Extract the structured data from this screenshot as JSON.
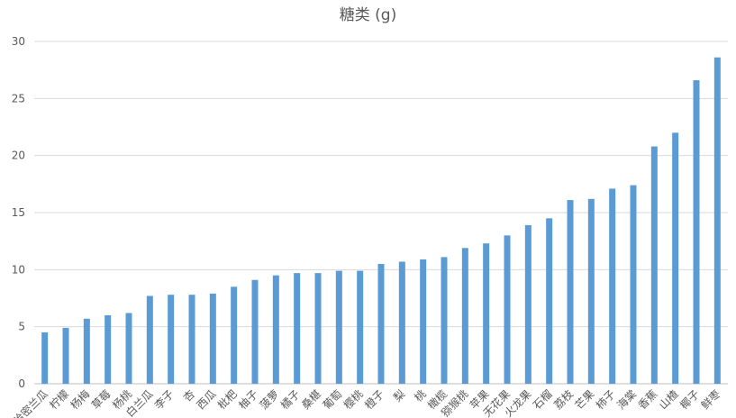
{
  "chart_data": {
    "type": "bar",
    "title": "糖类 (g)",
    "xlabel": "",
    "ylabel": "",
    "ylim": [
      0,
      30
    ],
    "yticks": [
      "0",
      "5",
      "10",
      "15",
      "20",
      "25",
      "30"
    ],
    "grid": true,
    "legend": "none",
    "bar_color": "#5B9BD5",
    "categories": [
      "哈密兰瓜",
      "柠檬",
      "杨梅",
      "草莓",
      "杨桃",
      "白兰瓜",
      "李子",
      "杏",
      "西瓜",
      "枇杷",
      "柚子",
      "菠萝",
      "橘子",
      "桑椹",
      "葡萄",
      "樱桃",
      "橙子",
      "梨",
      "桃",
      "橄榄",
      "猕猴桃",
      "苹果",
      "无花果",
      "火龙果",
      "石榴",
      "荔枝",
      "芒果",
      "柿子",
      "海棠",
      "香蕉",
      "山楂",
      "椰子",
      "鲜枣"
    ],
    "values": [
      4.5,
      4.9,
      5.7,
      6.0,
      6.2,
      7.7,
      7.8,
      7.8,
      7.9,
      8.5,
      9.1,
      9.5,
      9.7,
      9.7,
      9.9,
      9.9,
      10.5,
      10.7,
      10.9,
      11.1,
      11.9,
      12.3,
      13.0,
      13.9,
      14.5,
      16.1,
      16.2,
      17.1,
      17.4,
      20.8,
      22.0,
      26.6,
      28.6
    ]
  }
}
